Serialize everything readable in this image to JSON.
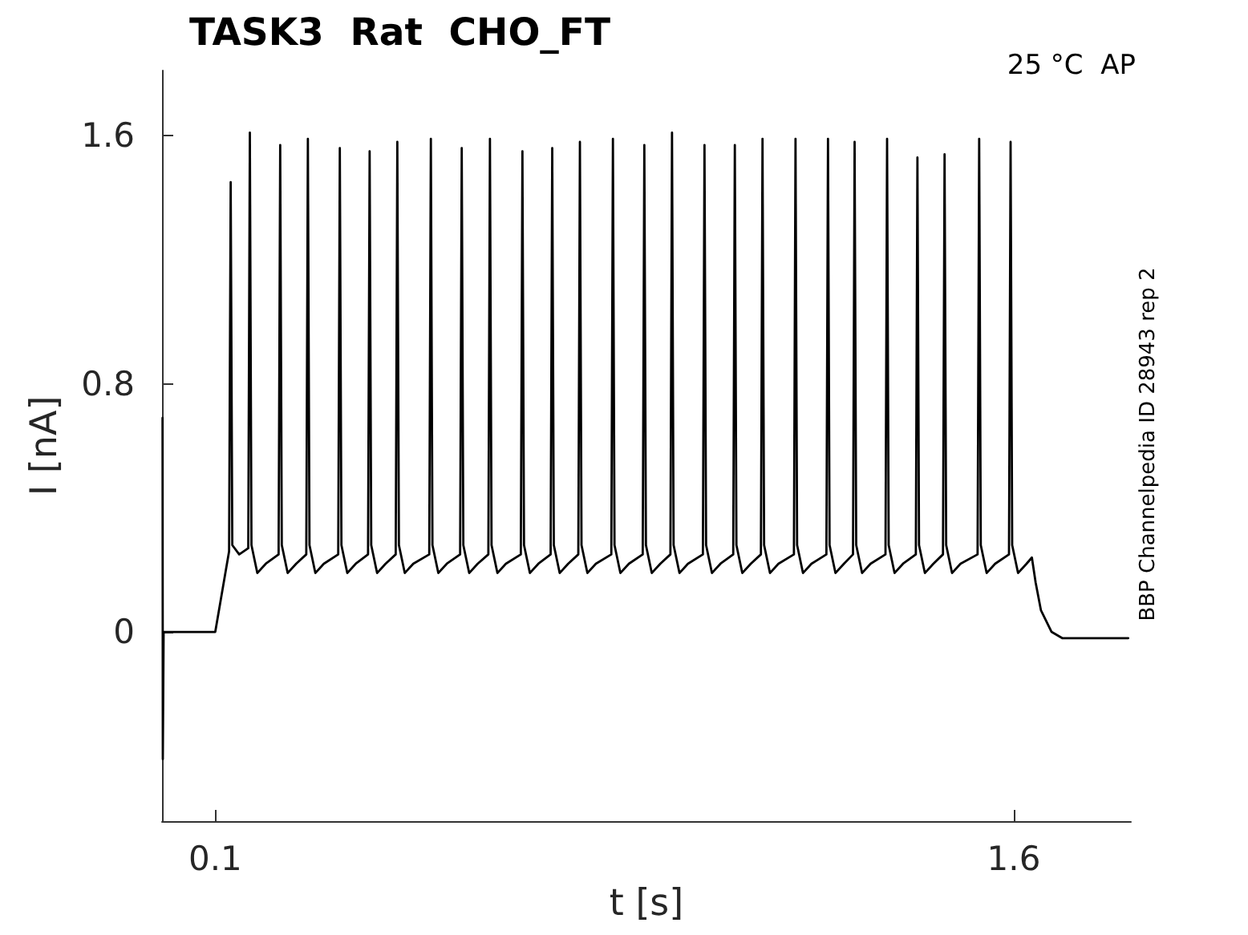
{
  "chart_data": {
    "type": "line",
    "title": "TASK3  Rat  CHO_FT",
    "xlabel": "t [s]",
    "ylabel": "I [nA]",
    "annotations": [
      "25 °C  AP",
      "BBP Channelpedia ID 28943 rep 2"
    ],
    "xlim": [
      0,
      1.82
    ],
    "ylim": [
      -0.61,
      1.81
    ],
    "xticks": [
      0.1,
      1.6
    ],
    "yticks": [
      0,
      0.8,
      1.6
    ],
    "grid": false,
    "marker": "none",
    "line_style": "solid",
    "color": "#000000",
    "x": [
      0.001,
      0.0015,
      0.003,
      0.05,
      0.1,
      0.126,
      0.129,
      0.132,
      0.145,
      0.162,
      0.165,
      0.168,
      0.179,
      0.195,
      0.219,
      0.222,
      0.225,
      0.236,
      0.252,
      0.271,
      0.274,
      0.277,
      0.288,
      0.304,
      0.331,
      0.334,
      0.337,
      0.348,
      0.364,
      0.387,
      0.39,
      0.393,
      0.404,
      0.42,
      0.439,
      0.442,
      0.445,
      0.456,
      0.472,
      0.502,
      0.505,
      0.508,
      0.519,
      0.535,
      0.56,
      0.563,
      0.566,
      0.577,
      0.593,
      0.613,
      0.616,
      0.619,
      0.63,
      0.646,
      0.674,
      0.677,
      0.68,
      0.691,
      0.707,
      0.73,
      0.733,
      0.736,
      0.747,
      0.763,
      0.782,
      0.785,
      0.788,
      0.799,
      0.815,
      0.844,
      0.847,
      0.85,
      0.861,
      0.877,
      0.903,
      0.906,
      0.909,
      0.92,
      0.936,
      0.955,
      0.958,
      0.961,
      0.972,
      0.988,
      1.016,
      1.019,
      1.022,
      1.033,
      1.049,
      1.073,
      1.076,
      1.079,
      1.09,
      1.106,
      1.125,
      1.128,
      1.131,
      1.142,
      1.158,
      1.187,
      1.19,
      1.193,
      1.204,
      1.22,
      1.248,
      1.251,
      1.254,
      1.265,
      1.281,
      1.298,
      1.301,
      1.304,
      1.315,
      1.331,
      1.359,
      1.362,
      1.365,
      1.376,
      1.392,
      1.416,
      1.419,
      1.422,
      1.433,
      1.449,
      1.467,
      1.47,
      1.473,
      1.484,
      1.5,
      1.532,
      1.535,
      1.538,
      1.549,
      1.565,
      1.591,
      1.594,
      1.597,
      1.608,
      1.624,
      1.634,
      1.641,
      1.651,
      1.671,
      1.691,
      1.75,
      1.815
    ],
    "values": [
      0.69,
      -0.41,
      0,
      0,
      0,
      0.26,
      1.45,
      0.28,
      0.25,
      0.27,
      1.61,
      0.28,
      0.19,
      0.22,
      0.25,
      1.57,
      0.28,
      0.19,
      0.22,
      0.25,
      1.59,
      0.28,
      0.19,
      0.22,
      0.25,
      1.56,
      0.28,
      0.19,
      0.22,
      0.25,
      1.55,
      0.28,
      0.19,
      0.22,
      0.25,
      1.58,
      0.28,
      0.19,
      0.22,
      0.25,
      1.59,
      0.28,
      0.19,
      0.22,
      0.25,
      1.56,
      0.28,
      0.19,
      0.22,
      0.25,
      1.59,
      0.28,
      0.19,
      0.22,
      0.25,
      1.55,
      0.28,
      0.19,
      0.22,
      0.25,
      1.56,
      0.28,
      0.19,
      0.22,
      0.25,
      1.58,
      0.28,
      0.19,
      0.22,
      0.25,
      1.59,
      0.28,
      0.19,
      0.22,
      0.25,
      1.57,
      0.28,
      0.19,
      0.22,
      0.25,
      1.61,
      0.28,
      0.19,
      0.22,
      0.25,
      1.57,
      0.28,
      0.19,
      0.22,
      0.25,
      1.57,
      0.28,
      0.19,
      0.22,
      0.25,
      1.59,
      0.28,
      0.19,
      0.22,
      0.25,
      1.59,
      0.28,
      0.19,
      0.22,
      0.25,
      1.59,
      0.28,
      0.19,
      0.22,
      0.25,
      1.58,
      0.28,
      0.19,
      0.22,
      0.25,
      1.59,
      0.28,
      0.19,
      0.22,
      0.25,
      1.53,
      0.28,
      0.19,
      0.22,
      0.25,
      1.54,
      0.28,
      0.19,
      0.22,
      0.25,
      1.59,
      0.28,
      0.19,
      0.22,
      0.25,
      1.58,
      0.28,
      0.19,
      0.22,
      0.24,
      0.16,
      0.07,
      0,
      -0.02,
      -0.02,
      -0.02
    ]
  }
}
